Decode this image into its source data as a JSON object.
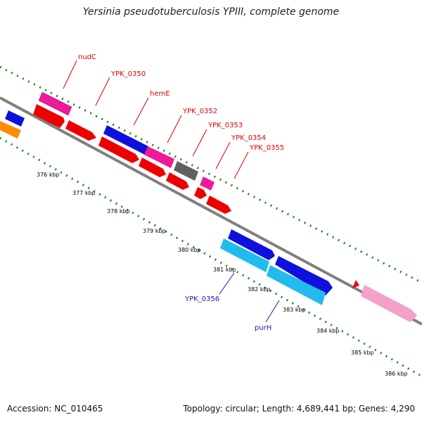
{
  "title": "Yersinia pseudotuberculosis YPIII, complete genome",
  "footer": {
    "accession": "Accession: NC_010465",
    "topology": "Topology: circular; Length: 4,689,441 bp; Genes: 4,290"
  },
  "colors": {
    "backbone": "#808080",
    "tick_green": "#1a8a1a",
    "red": "#ee0000",
    "magenta": "#ee1a9a",
    "blue": "#1010dd",
    "gray": "#606060",
    "cyan": "#22bbee",
    "pink": "#f5a0c8",
    "orange": "#ff8c00",
    "label_red": "#dd0000",
    "label_blue": "#1a1ab0"
  },
  "gene_labels": [
    {
      "text": "nudC",
      "color": "red"
    },
    {
      "text": "YPK_0350",
      "color": "red"
    },
    {
      "text": "hemE",
      "color": "red"
    },
    {
      "text": "YPK_0352",
      "color": "red"
    },
    {
      "text": "YPK_0353",
      "color": "red"
    },
    {
      "text": "YPK_0354",
      "color": "red"
    },
    {
      "text": "YPK_0355",
      "color": "red"
    },
    {
      "text": "YPK_0356",
      "color": "blue"
    },
    {
      "text": "purH",
      "color": "blue"
    }
  ],
  "ticks": [
    "376 kbp",
    "377 kbp",
    "378 kbp",
    "379 kbp",
    "380 kbp",
    "381 kbp",
    "382 kbp",
    "383 kbp",
    "384 kbp",
    "385 kbp",
    "386 kbp"
  ]
}
